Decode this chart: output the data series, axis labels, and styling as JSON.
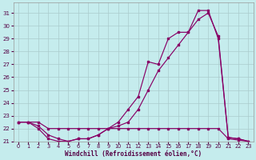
{
  "xlabel": "Windchill (Refroidissement éolien,°C)",
  "bg_color": "#c5eced",
  "grid_color": "#aacccc",
  "line_color": "#880066",
  "xlim_min": -0.5,
  "xlim_max": 23.5,
  "ylim_min": 21,
  "ylim_max": 31.8,
  "xticks": [
    0,
    1,
    2,
    3,
    4,
    5,
    6,
    7,
    8,
    9,
    10,
    11,
    12,
    13,
    14,
    15,
    16,
    17,
    18,
    19,
    20,
    21,
    22,
    23
  ],
  "yticks": [
    21,
    22,
    23,
    24,
    25,
    26,
    27,
    28,
    29,
    30,
    31
  ],
  "line1_x": [
    0,
    1,
    2,
    3,
    4,
    5,
    6,
    7,
    8,
    9,
    10,
    11,
    12,
    13,
    14,
    15,
    16,
    17,
    18,
    19,
    20,
    21,
    22,
    23
  ],
  "line1_y": [
    22.5,
    22.5,
    22.5,
    22.0,
    22.0,
    22.0,
    22.0,
    22.0,
    22.0,
    22.0,
    22.0,
    22.0,
    22.0,
    22.0,
    22.0,
    22.0,
    22.0,
    22.0,
    22.0,
    22.0,
    22.0,
    21.2,
    21.1,
    21.0
  ],
  "line2_x": [
    0,
    1,
    2,
    3,
    4,
    5,
    6,
    7,
    8,
    9,
    10,
    11,
    12,
    13,
    14,
    15,
    16,
    17,
    18,
    19,
    20,
    21,
    22,
    23
  ],
  "line2_y": [
    22.5,
    22.5,
    22.0,
    21.2,
    21.0,
    21.0,
    21.2,
    21.2,
    21.5,
    22.0,
    22.2,
    22.5,
    23.5,
    25.0,
    26.5,
    27.5,
    28.5,
    29.5,
    30.5,
    31.0,
    29.2,
    21.3,
    21.2,
    21.0
  ],
  "line3_x": [
    0,
    1,
    2,
    3,
    4,
    5,
    6,
    7,
    8,
    9,
    10,
    11,
    12,
    13,
    14,
    15,
    16,
    17,
    18,
    19,
    20,
    21,
    22,
    23
  ],
  "line3_y": [
    22.5,
    22.5,
    22.2,
    21.5,
    21.2,
    21.0,
    21.2,
    21.2,
    21.5,
    22.0,
    22.5,
    23.5,
    24.5,
    27.2,
    27.0,
    29.0,
    29.5,
    29.5,
    31.2,
    31.2,
    29.0,
    21.3,
    21.2,
    21.0
  ]
}
